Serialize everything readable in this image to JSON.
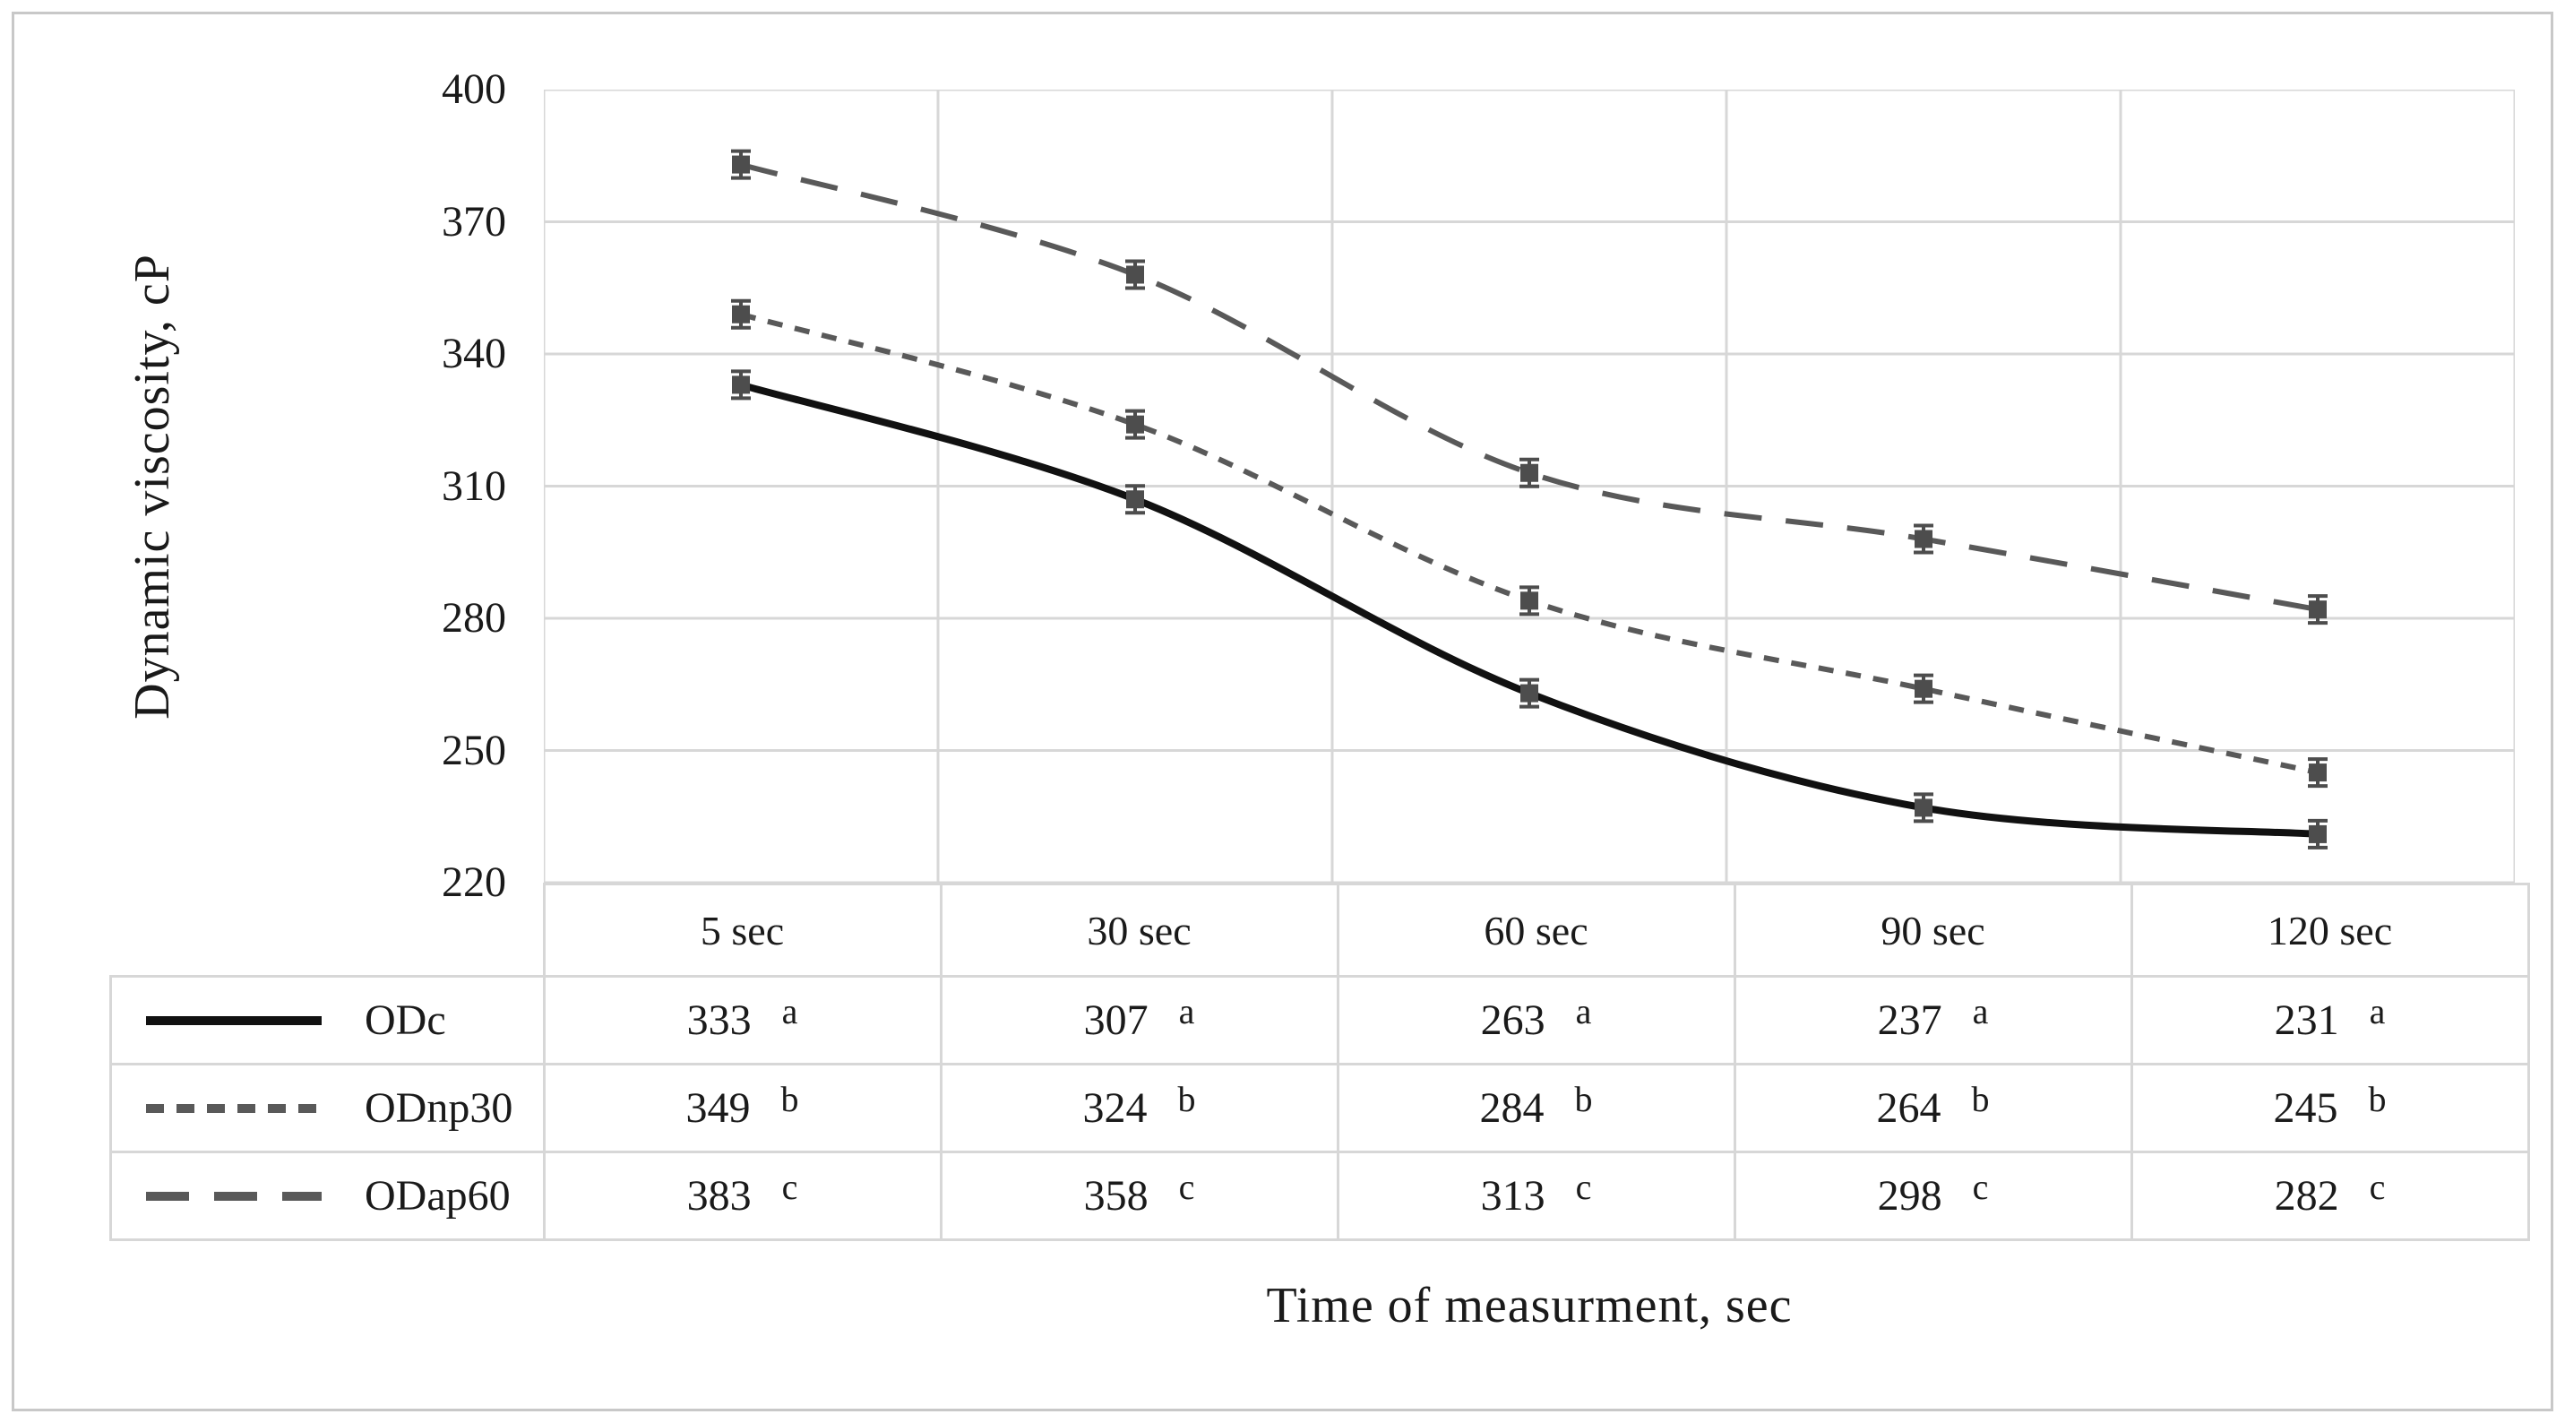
{
  "figure": {
    "y_axis_title": "Dynamic viscosity, cP",
    "x_axis_title": "Time of measurment, sec"
  },
  "chart_data": {
    "type": "line",
    "title": "",
    "xlabel": "Time of measurment, sec",
    "ylabel": "Dynamic viscosity, cP",
    "categories": [
      "5 sec",
      "30 sec",
      "60 sec",
      "90 sec",
      "120 sec"
    ],
    "ylim": [
      220,
      400
    ],
    "yticks": [
      400,
      370,
      340,
      310,
      280,
      250,
      220
    ],
    "grid": true,
    "error_bars": true,
    "legend_position": "table-left-column",
    "colors": {
      "solid_line": "#111111",
      "dashed_line": "#595959",
      "marker": "#4d4d4d",
      "gridline": "#d7d7d7",
      "text": "#1a1a1a"
    },
    "series": [
      {
        "name": "ODc",
        "line_style": "solid",
        "values": [
          333,
          307,
          263,
          237,
          231
        ],
        "letters": [
          "a",
          "a",
          "a",
          "a",
          "a"
        ]
      },
      {
        "name": "ODnp30",
        "line_style": "short-dash",
        "values": [
          349,
          324,
          284,
          264,
          245
        ],
        "letters": [
          "b",
          "b",
          "b",
          "b",
          "b"
        ]
      },
      {
        "name": "ODap60",
        "line_style": "long-dash",
        "values": [
          383,
          358,
          313,
          298,
          282
        ],
        "letters": [
          "c",
          "c",
          "c",
          "c",
          "c"
        ]
      }
    ]
  }
}
